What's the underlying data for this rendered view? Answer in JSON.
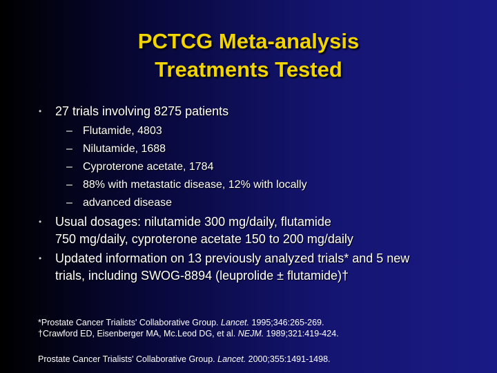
{
  "header": {
    "title_lines": [
      "PCTCG Meta-analysis",
      "Treatments Tested"
    ]
  },
  "bullets": [
    {
      "lines": [
        "27 trials involving 8275 patients"
      ],
      "sub_items": [
        "Flutamide, 4803",
        "Nilutamide, 1688",
        "Cyproterone acetate, 1784",
        "88% with metastatic disease, 12% with locally",
        "advanced disease"
      ]
    },
    {
      "lines": [
        "Usual dosages: nilutamide 300 mg/daily, flutamide",
        "750 mg/daily, cyproterone acetate 150 to 200 mg/daily"
      ]
    },
    {
      "lines": [
        "Updated information on 13 previously analyzed trials* and 5 new",
        "trials, including SWOG-8894 (leuprolide ± flutamide)†"
      ]
    }
  ],
  "references": [
    {
      "before": "*Prostate Cancer Trialists' Collaborative Group. ",
      "journal": "Lancet.",
      "after": " 1995;346:265-269."
    },
    {
      "before": "†Crawford ED, Eisenberger MA, Mc.Leod DG, et al. ",
      "journal": "NEJM.",
      "after": " 1989;321:419-424."
    },
    {
      "before": "Prostate Cancer Trialists' Collaborative Group. ",
      "journal": "Lancet.",
      "after": " 2000;355:1491-1498."
    }
  ]
}
